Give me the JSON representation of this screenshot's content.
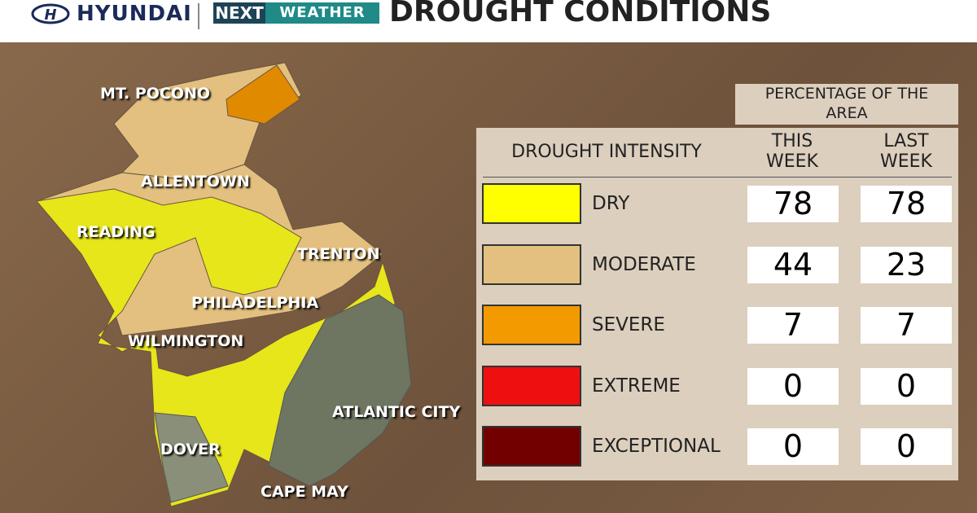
{
  "header": {
    "brand": "HYUNDAI",
    "next": "NEXT",
    "weather": "WEATHER",
    "title": "DROUGHT CONDITIONS"
  },
  "map": {
    "labels": [
      "MT. POCONO",
      "ALLENTOWN",
      "READING",
      "TRENTON",
      "PHILADELPHIA",
      "WILMINGTON",
      "ATLANTIC CITY",
      "DOVER",
      "CAPE MAY"
    ]
  },
  "table": {
    "caption": "PERCENTAGE OF THE AREA",
    "columns": [
      "DROUGHT INTENSITY",
      "THIS WEEK",
      "LAST WEEK"
    ],
    "rows": [
      {
        "label": "DRY",
        "color": "#ffff00",
        "this_week": 78,
        "last_week": 78
      },
      {
        "label": "MODERATE",
        "color": "#e3c07f",
        "this_week": 44,
        "last_week": 23
      },
      {
        "label": "SEVERE",
        "color": "#f39a00",
        "this_week": 7,
        "last_week": 7
      },
      {
        "label": "EXTREME",
        "color": "#ee1010",
        "this_week": 0,
        "last_week": 0
      },
      {
        "label": "EXCEPTIONAL",
        "color": "#730000",
        "this_week": 0,
        "last_week": 0
      }
    ]
  }
}
